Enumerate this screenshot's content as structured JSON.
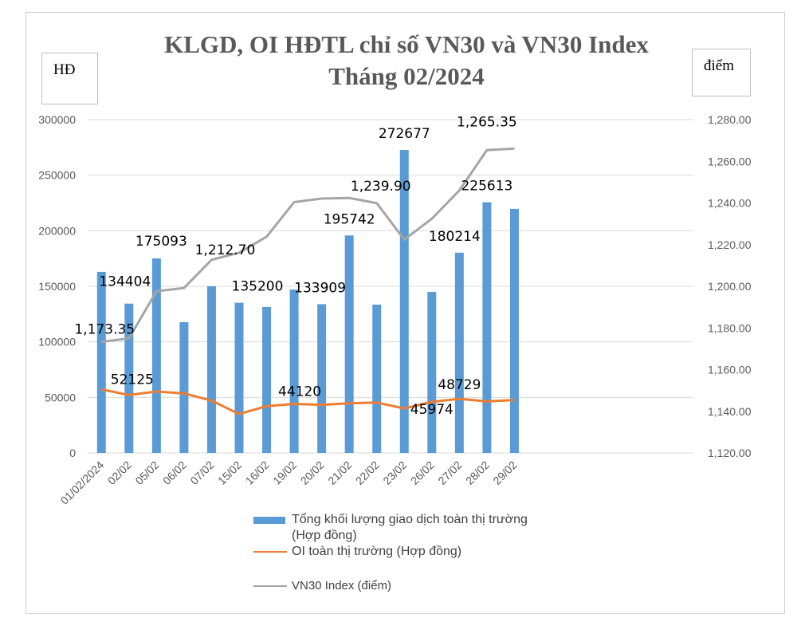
{
  "chart_data": {
    "type": "bar+line",
    "title_lines": [
      "KLGD, OI HĐTL chỉ số VN30 và VN30 Index",
      "Tháng 02/2024"
    ],
    "ylabel_left": "HĐ",
    "ylabel_right": "điểm",
    "categories": [
      "01/02/2024",
      "02/02",
      "05/02",
      "06/02",
      "07/02",
      "15/02",
      "16/02",
      "19/02",
      "20/02",
      "21/02",
      "22/02",
      "23/02",
      "26/02",
      "27/02",
      "28/02",
      "29/02"
    ],
    "ylim_left": [
      0,
      300000
    ],
    "yticks_left": [
      "0",
      "50000",
      "100000",
      "150000",
      "200000",
      "250000",
      "300000"
    ],
    "ylim_right": [
      1120,
      1280
    ],
    "yticks_right": [
      "1,120.00",
      "1,140.00",
      "1,160.00",
      "1,180.00",
      "1,200.00",
      "1,220.00",
      "1,240.00",
      "1,260.00",
      "1,280.00"
    ],
    "grid": true,
    "legend_position": "bottom",
    "series": [
      {
        "name": "Tổng khối lượng giao dịch toàn thị trường (Hợp đồng)",
        "type": "bar",
        "axis": "left",
        "color": "#5B9BD5",
        "values": [
          163000,
          134404,
          175093,
          117700,
          150000,
          135200,
          131400,
          147000,
          133909,
          195742,
          133500,
          272677,
          145000,
          180214,
          225613,
          219700
        ]
      },
      {
        "name": "OI toàn thị trường (Hợp đồng)",
        "type": "line",
        "axis": "left",
        "color": "#ED7D31",
        "values": [
          57200,
          52125,
          55300,
          53600,
          47100,
          35000,
          42100,
          44120,
          43300,
          44700,
          45400,
          40000,
          45974,
          48729,
          46400,
          47600
        ]
      },
      {
        "name": "VN30 Index (điểm)",
        "type": "line",
        "axis": "right",
        "color": "#A5A5A5",
        "values": [
          1173.35,
          1175.0,
          1197.6,
          1199.2,
          1212.7,
          1216.1,
          1223.8,
          1240.4,
          1242.1,
          1242.4,
          1239.9,
          1222.4,
          1232.4,
          1246.0,
          1265.35,
          1266.1
        ]
      }
    ],
    "data_labels": [
      {
        "series": 0,
        "index": 1,
        "text": "134404"
      },
      {
        "series": 0,
        "index": 2,
        "text": "175093"
      },
      {
        "series": 0,
        "index": 5,
        "text": "135200"
      },
      {
        "series": 0,
        "index": 8,
        "text": "133909"
      },
      {
        "series": 0,
        "index": 9,
        "text": "195742"
      },
      {
        "series": 0,
        "index": 11,
        "text": "272677"
      },
      {
        "series": 0,
        "index": 13,
        "text": "180214"
      },
      {
        "series": 0,
        "index": 14,
        "text": "225613"
      },
      {
        "series": 1,
        "index": 1,
        "text": "52125"
      },
      {
        "series": 1,
        "index": 7,
        "text": "44120"
      },
      {
        "series": 1,
        "index": 12,
        "text": "45974"
      },
      {
        "series": 1,
        "index": 13,
        "text": "48729"
      },
      {
        "series": 2,
        "index": 0,
        "text": "1,173.35"
      },
      {
        "series": 2,
        "index": 4,
        "text": "1,212.70"
      },
      {
        "series": 2,
        "index": 10,
        "text": "1,239.90"
      },
      {
        "series": 2,
        "index": 14,
        "text": "1,265.35"
      }
    ],
    "legend": {
      "bar_line1": "Tổng khối lượng giao dịch toàn thị trường",
      "bar_line2": "(Hợp đồng)",
      "oi": "OI toàn thị trường (Hợp đồng)",
      "vn30": "VN30 Index (điểm)"
    }
  }
}
